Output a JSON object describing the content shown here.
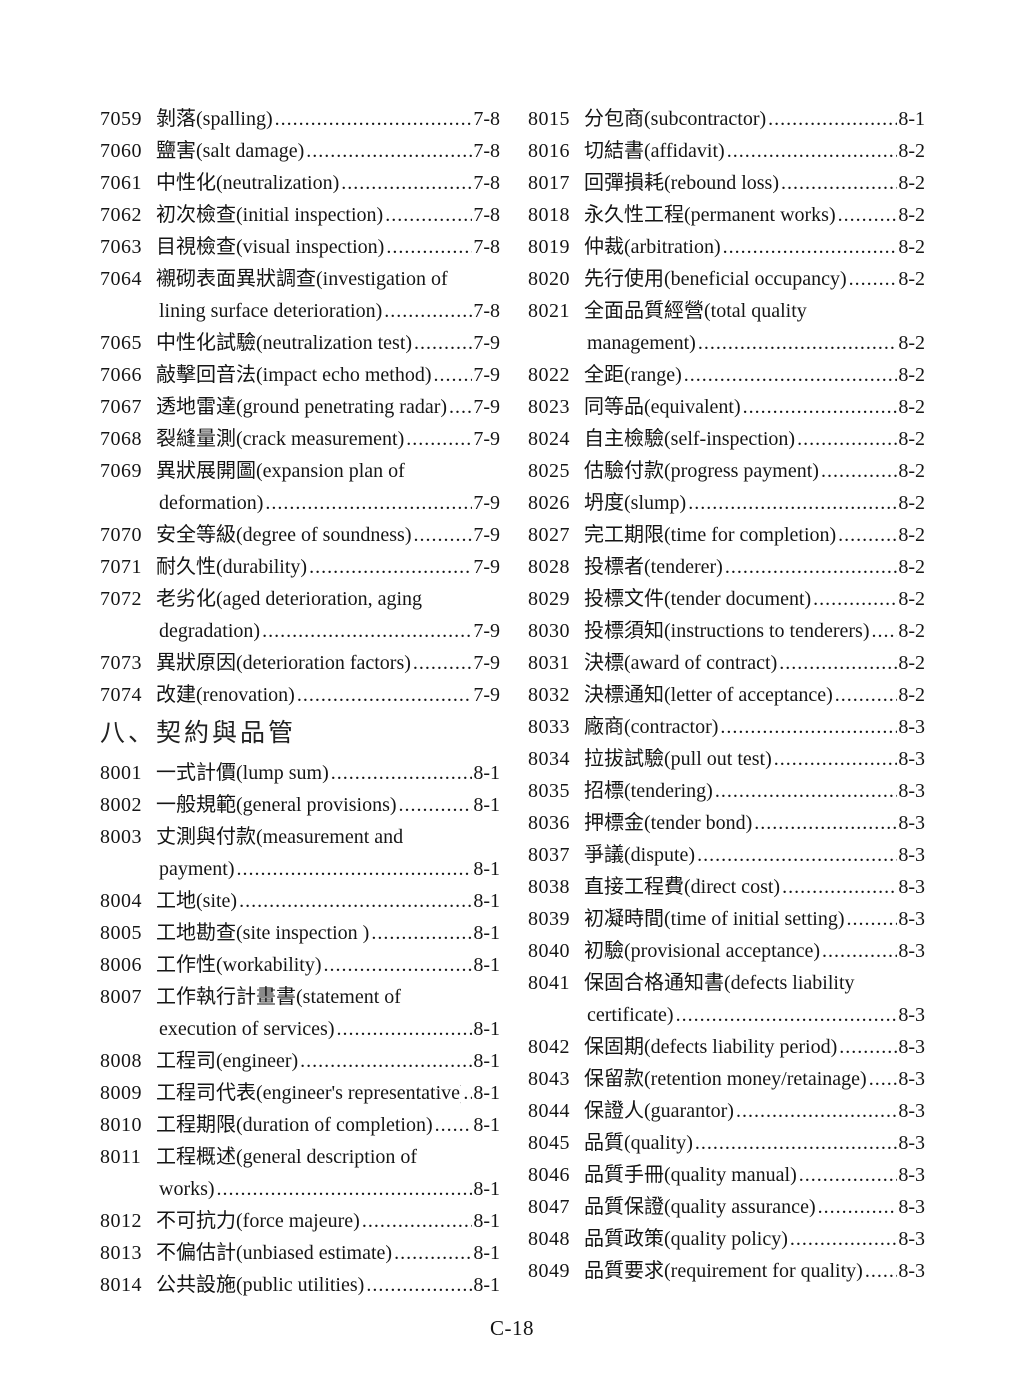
{
  "page": {
    "footer": "C-18"
  },
  "columns": [
    {
      "blocks": [
        {
          "type": "entries",
          "items": [
            {
              "num": "7059",
              "lines": [
                "剝落(spalling)"
              ],
              "page": "7-8"
            },
            {
              "num": "7060",
              "lines": [
                "鹽害(salt damage)"
              ],
              "page": "7-8"
            },
            {
              "num": "7061",
              "lines": [
                "中性化(neutralization)"
              ],
              "page": "7-8"
            },
            {
              "num": "7062",
              "lines": [
                "初次檢查(initial inspection)"
              ],
              "page": "7-8"
            },
            {
              "num": "7063",
              "lines": [
                "目視檢查(visual inspection)"
              ],
              "page": "7-8"
            },
            {
              "num": "7064",
              "lines": [
                "襯砌表面異狀調查(investigation of",
                "lining surface deterioration)"
              ],
              "page": "7-8"
            },
            {
              "num": "7065",
              "lines": [
                "中性化試驗(neutralization test)"
              ],
              "page": "7-9"
            },
            {
              "num": "7066",
              "lines": [
                "敲擊回音法(impact echo method)"
              ],
              "page": "7-9"
            },
            {
              "num": "7067",
              "lines": [
                "透地雷達(ground penetrating radar)"
              ],
              "page": "7-9"
            },
            {
              "num": "7068",
              "lines": [
                "裂縫量測(crack measurement)"
              ],
              "page": "7-9"
            },
            {
              "num": "7069",
              "lines": [
                "異狀展開圖(expansion plan of",
                "deformation)"
              ],
              "page": "7-9"
            },
            {
              "num": "7070",
              "lines": [
                "安全等級(degree of soundness)"
              ],
              "page": "7-9"
            },
            {
              "num": "7071",
              "lines": [
                "耐久性(durability)"
              ],
              "page": "7-9"
            },
            {
              "num": "7072",
              "lines": [
                "老劣化(aged deterioration, aging",
                "degradation)"
              ],
              "page": "7-9"
            },
            {
              "num": "7073",
              "lines": [
                "異狀原因(deterioration factors)"
              ],
              "page": "7-9"
            },
            {
              "num": "7074",
              "lines": [
                "改建(renovation)"
              ],
              "page": "7-9"
            }
          ]
        },
        {
          "type": "heading",
          "text": "八、契約與品管"
        },
        {
          "type": "entries",
          "items": [
            {
              "num": "8001",
              "lines": [
                "一式計價(lump sum)"
              ],
              "page": "8-1"
            },
            {
              "num": "8002",
              "lines": [
                "一般規範(general provisions)"
              ],
              "page": "8-1"
            },
            {
              "num": "8003",
              "lines": [
                "丈測與付款(measurement and",
                "payment)"
              ],
              "page": "8-1"
            },
            {
              "num": "8004",
              "lines": [
                "工地(site)"
              ],
              "page": "8-1"
            },
            {
              "num": "8005",
              "lines": [
                "工地勘查(site inspection )"
              ],
              "page": "8-1"
            },
            {
              "num": "8006",
              "lines": [
                "工作性(workability)"
              ],
              "page": "8-1"
            },
            {
              "num": "8007",
              "lines": [
                "工作執行計畫書(statement of",
                "execution of services)"
              ],
              "page": "8-1"
            },
            {
              "num": "8008",
              "lines": [
                "工程司(engineer)"
              ],
              "page": "8-1"
            },
            {
              "num": "8009",
              "lines": [
                "工程司代表(engineer's representative)"
              ],
              "page": "8-1"
            },
            {
              "num": "8010",
              "lines": [
                "工程期限(duration of completion)"
              ],
              "page": "8-1"
            },
            {
              "num": "8011",
              "lines": [
                "工程概述(general description of",
                "works)"
              ],
              "page": "8-1"
            },
            {
              "num": "8012",
              "lines": [
                "不可抗力(force majeure)"
              ],
              "page": "8-1"
            },
            {
              "num": "8013",
              "lines": [
                "不偏估計(unbiased estimate)"
              ],
              "page": "8-1"
            },
            {
              "num": "8014",
              "lines": [
                "公共設施(public utilities)"
              ],
              "page": "8-1"
            }
          ]
        }
      ]
    },
    {
      "blocks": [
        {
          "type": "entries",
          "items": [
            {
              "num": "8015",
              "lines": [
                "分包商(subcontractor)"
              ],
              "page": "8-1"
            },
            {
              "num": "8016",
              "lines": [
                "切結書(affidavit)"
              ],
              "page": "8-2"
            },
            {
              "num": "8017",
              "lines": [
                "回彈損耗(rebound loss)"
              ],
              "page": "8-2"
            },
            {
              "num": "8018",
              "lines": [
                "永久性工程(permanent works)"
              ],
              "page": "8-2"
            },
            {
              "num": "8019",
              "lines": [
                "仲裁(arbitration)"
              ],
              "page": "8-2"
            },
            {
              "num": "8020",
              "lines": [
                "先行使用(beneficial occupancy)"
              ],
              "page": "8-2"
            },
            {
              "num": "8021",
              "lines": [
                "全面品質經營(total quality",
                "management)"
              ],
              "page": "8-2"
            },
            {
              "num": "8022",
              "lines": [
                "全距(range)"
              ],
              "page": "8-2"
            },
            {
              "num": "8023",
              "lines": [
                "同等品(equivalent)"
              ],
              "page": "8-2"
            },
            {
              "num": "8024",
              "lines": [
                "自主檢驗(self-inspection)"
              ],
              "page": "8-2"
            },
            {
              "num": "8025",
              "lines": [
                "估驗付款(progress payment)"
              ],
              "page": "8-2"
            },
            {
              "num": "8026",
              "lines": [
                "坍度(slump)"
              ],
              "page": "8-2"
            },
            {
              "num": "8027",
              "lines": [
                "完工期限(time for completion)"
              ],
              "page": "8-2"
            },
            {
              "num": "8028",
              "lines": [
                "投標者(tenderer)"
              ],
              "page": "8-2"
            },
            {
              "num": "8029",
              "lines": [
                "投標文件(tender document)"
              ],
              "page": "8-2"
            },
            {
              "num": "8030",
              "lines": [
                "投標須知(instructions to tenderers)"
              ],
              "page": "8-2"
            },
            {
              "num": "8031",
              "lines": [
                "決標(award of contract)"
              ],
              "page": "8-2"
            },
            {
              "num": "8032",
              "lines": [
                "決標通知(letter of acceptance)"
              ],
              "page": "8-2"
            },
            {
              "num": "8033",
              "lines": [
                "廠商(contractor)"
              ],
              "page": "8-3"
            },
            {
              "num": "8034",
              "lines": [
                "拉拔試驗(pull out test)"
              ],
              "page": "8-3"
            },
            {
              "num": "8035",
              "lines": [
                "招標(tendering)"
              ],
              "page": "8-3"
            },
            {
              "num": "8036",
              "lines": [
                "押標金(tender bond)"
              ],
              "page": "8-3"
            },
            {
              "num": "8037",
              "lines": [
                "爭議(dispute)"
              ],
              "page": "8-3"
            },
            {
              "num": "8038",
              "lines": [
                "直接工程費(direct cost)"
              ],
              "page": "8-3"
            },
            {
              "num": "8039",
              "lines": [
                "初凝時間(time of initial setting)"
              ],
              "page": "8-3"
            },
            {
              "num": "8040",
              "lines": [
                "初驗(provisional acceptance)"
              ],
              "page": "8-3"
            },
            {
              "num": "8041",
              "lines": [
                "保固合格通知書(defects liability",
                "certificate)"
              ],
              "page": "8-3"
            },
            {
              "num": "8042",
              "lines": [
                "保固期(defects liability period)"
              ],
              "page": "8-3"
            },
            {
              "num": "8043",
              "lines": [
                "保留款(retention money/retainage)"
              ],
              "page": "8-3"
            },
            {
              "num": "8044",
              "lines": [
                "保證人(guarantor)"
              ],
              "page": "8-3"
            },
            {
              "num": "8045",
              "lines": [
                "品質(quality)"
              ],
              "page": "8-3"
            },
            {
              "num": "8046",
              "lines": [
                "品質手冊(quality manual)"
              ],
              "page": "8-3"
            },
            {
              "num": "8047",
              "lines": [
                "品質保證(quality assurance)"
              ],
              "page": "8-3"
            },
            {
              "num": "8048",
              "lines": [
                "品質政策(quality policy)"
              ],
              "page": "8-3"
            },
            {
              "num": "8049",
              "lines": [
                "品質要求(requirement for quality)"
              ],
              "page": "8-3"
            }
          ]
        }
      ]
    }
  ]
}
